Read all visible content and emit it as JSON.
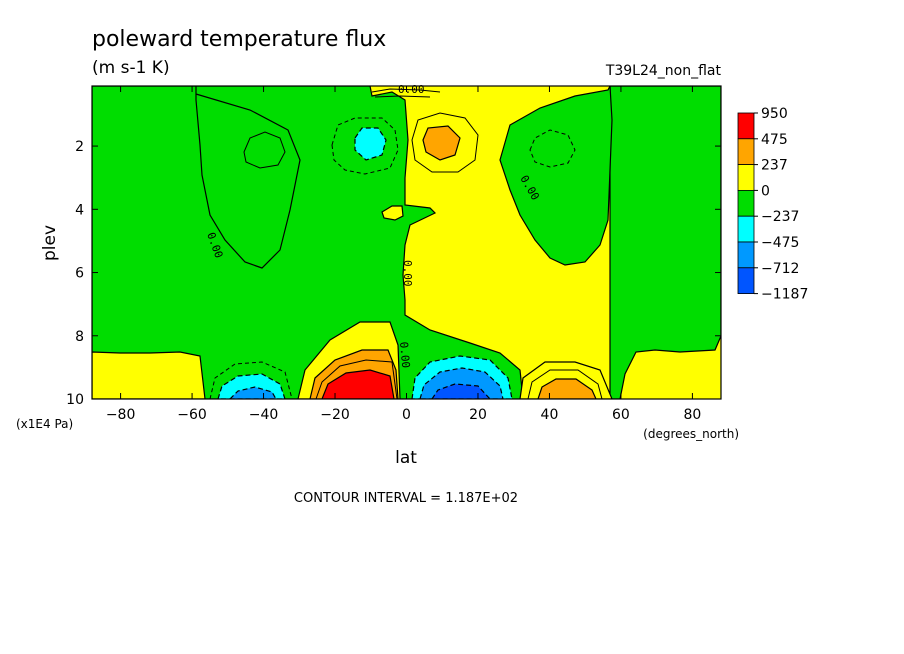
{
  "chart_data": {
    "type": "contourf",
    "title": "poleward temperature flux",
    "units": "(m s-1 K)",
    "run_label": "T39L24_non_flat",
    "xlabel": "lat",
    "xunits": "(degrees_north)",
    "ylabel": "plev",
    "yunits": "(x1E4 Pa)",
    "xlim": [
      -88,
      88
    ],
    "ylim": [
      10,
      0.1
    ],
    "x_ticks": [
      -80,
      -60,
      -40,
      -20,
      0,
      20,
      40,
      60,
      80
    ],
    "y_ticks": [
      2,
      4,
      6,
      8,
      10
    ],
    "contour_interval_text": "CONTOUR INTERVAL = 1.187E+02",
    "zero_contour_label": "0.00",
    "colorbar": {
      "labels": [
        "950",
        "475",
        "237",
        "0",
        "-237",
        "-475",
        "-712",
        "-1187"
      ],
      "colors": [
        "#ff0000",
        "#ffa500",
        "#ffff00",
        "#00dd00",
        "#00ffff",
        "#0099ff",
        "#0055ff"
      ]
    },
    "features": [
      {
        "lat": -12,
        "plev": 9.7,
        "value": 950
      },
      {
        "lat": 12,
        "plev": 9.7,
        "value": -950
      },
      {
        "lat": -45,
        "plev": 9.6,
        "value": -500
      },
      {
        "lat": 45,
        "plev": 9.6,
        "value": 450
      },
      {
        "lat": -10,
        "plev": 2.0,
        "value": -300
      },
      {
        "lat": 10,
        "plev": 2.0,
        "value": 300
      }
    ]
  }
}
